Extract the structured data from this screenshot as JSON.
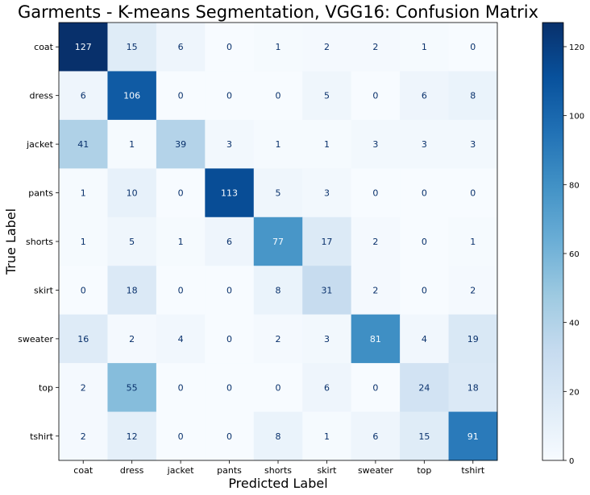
{
  "chart_data": {
    "type": "heatmap",
    "title": "Garments - K-means Segmentation, VGG16: Confusion Matrix",
    "xlabel": "Predicted Label",
    "ylabel": "True Label",
    "x_categories": [
      "coat",
      "dress",
      "jacket",
      "pants",
      "shorts",
      "skirt",
      "sweater",
      "top",
      "tshirt"
    ],
    "y_categories": [
      "coat",
      "dress",
      "jacket",
      "pants",
      "shorts",
      "skirt",
      "sweater",
      "top",
      "tshirt"
    ],
    "values": [
      [
        127,
        15,
        6,
        0,
        1,
        2,
        2,
        1,
        0
      ],
      [
        6,
        106,
        0,
        0,
        0,
        5,
        0,
        6,
        8
      ],
      [
        41,
        1,
        39,
        3,
        1,
        1,
        3,
        3,
        3
      ],
      [
        1,
        10,
        0,
        113,
        5,
        3,
        0,
        0,
        0
      ],
      [
        1,
        5,
        1,
        6,
        77,
        17,
        2,
        0,
        1
      ],
      [
        0,
        18,
        0,
        0,
        8,
        31,
        2,
        0,
        2
      ],
      [
        16,
        2,
        4,
        0,
        2,
        3,
        81,
        4,
        19
      ],
      [
        2,
        55,
        0,
        0,
        0,
        6,
        0,
        24,
        18
      ],
      [
        2,
        12,
        0,
        0,
        8,
        1,
        6,
        15,
        91
      ]
    ],
    "colormap": "Blues",
    "colorbar": {
      "min": 0,
      "max": 127,
      "ticks": [
        0,
        20,
        40,
        60,
        80,
        100,
        120
      ]
    }
  }
}
